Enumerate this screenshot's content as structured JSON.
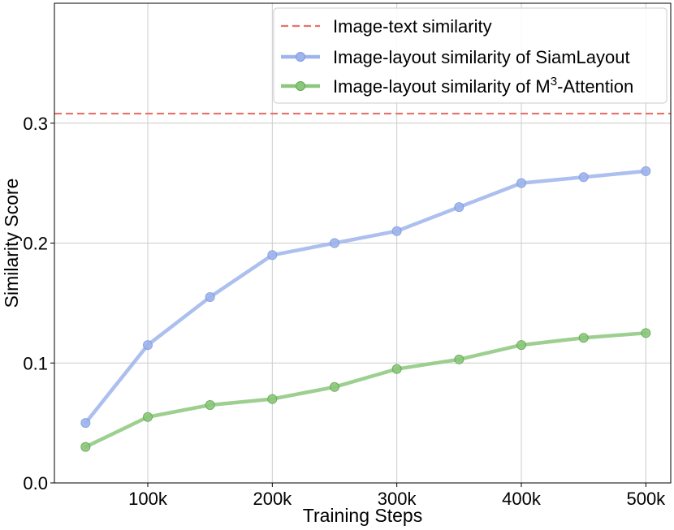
{
  "chart_data": {
    "type": "line",
    "xlabel": "Training Steps",
    "ylabel": "Similarity Score",
    "xlim": [
      25000,
      520000
    ],
    "ylim": [
      0,
      0.4
    ],
    "x_ticks": [
      100000,
      200000,
      300000,
      400000,
      500000
    ],
    "x_tick_labels": [
      "100k",
      "200k",
      "300k",
      "400k",
      "500k"
    ],
    "y_ticks": [
      0,
      0.1,
      0.2,
      0.3
    ],
    "y_tick_labels": [
      "0.0",
      "0.1",
      "0.2",
      "0.3"
    ],
    "grid": true,
    "legend_position": "top-right",
    "reference_line": {
      "name": "Image-text similarity",
      "y": 0.308,
      "color": "#e8726a",
      "style": "dashed"
    },
    "x": [
      50000,
      100000,
      150000,
      200000,
      250000,
      300000,
      350000,
      400000,
      450000,
      500000
    ],
    "series": [
      {
        "name": "Image-layout similarity of SiamLayout",
        "color": "#9eb4ec",
        "values": [
          0.05,
          0.115,
          0.155,
          0.19,
          0.2,
          0.21,
          0.23,
          0.25,
          0.255,
          0.26
        ]
      },
      {
        "name_parts": [
          "Image-layout similarity of M",
          "3",
          "-Attention"
        ],
        "color": "#8cc77d",
        "values": [
          0.03,
          0.055,
          0.065,
          0.07,
          0.08,
          0.095,
          0.103,
          0.115,
          0.121,
          0.125
        ]
      }
    ]
  }
}
